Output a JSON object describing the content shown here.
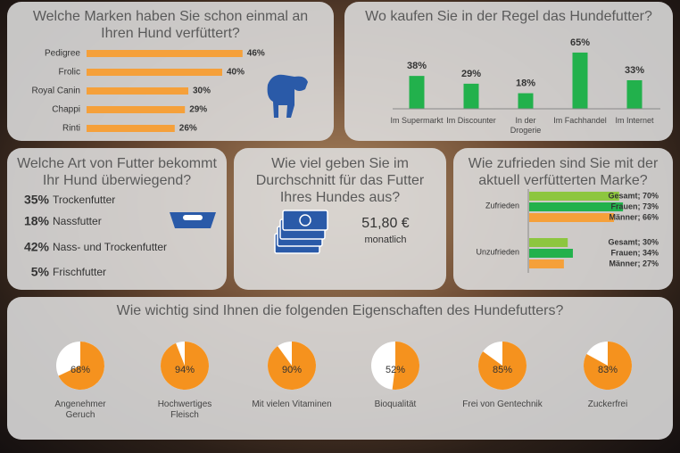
{
  "chart_data": [
    {
      "type": "hbar",
      "title": "Welche Marken haben Sie schon einmal an Ihren Hund verfüttert?",
      "categories": [
        "Pedigree",
        "Frolic",
        "Royal Canin",
        "Chappi",
        "Rinti"
      ],
      "values": [
        46,
        40,
        30,
        29,
        26
      ],
      "value_labels": [
        "46%",
        "40%",
        "30%",
        "29%",
        "26%"
      ],
      "color": "#f5a03a"
    },
    {
      "type": "bar",
      "title": "Wo kaufen Sie in der Regel das Hundefutter?",
      "categories": [
        "Im Supermarkt",
        "Im Discounter",
        "In der Drogerie",
        "Im Fachhandel",
        "Im Internet"
      ],
      "values": [
        38,
        29,
        18,
        65,
        33
      ],
      "value_labels": [
        "38%",
        "29%",
        "18%",
        "65%",
        "33%"
      ],
      "color": "#22b14c"
    },
    {
      "type": "grouped-hbar",
      "title": "Wie zufrieden sind Sie mit der aktuell verfütterten Marke?",
      "categories": [
        "Zufrieden",
        "Unzufrieden"
      ],
      "series": [
        {
          "color": "#8dc63f",
          "values": [
            70,
            30
          ],
          "value_labels": [
            "Gesamt; 70%",
            "Gesamt; 30%"
          ]
        },
        {
          "color": "#22b14c",
          "values": [
            73,
            34
          ],
          "value_labels": [
            "Frauen; 73%",
            "Frauen; 34%"
          ]
        },
        {
          "color": "#f5a03a",
          "values": [
            66,
            27
          ],
          "value_labels": [
            "Männer; 66%",
            "Männer; 27%"
          ]
        }
      ]
    },
    {
      "type": "pie-grid",
      "title": "Wie wichtig sind Ihnen die folgenden Eigenschaften des Hundefutters?",
      "categories": [
        "Angenehmer Geruch",
        "Hochwertiges Fleisch",
        "Mit vielen Vitaminen",
        "Bioqualität",
        "Frei von Gentechnik",
        "Zuckerfrei"
      ],
      "values": [
        68,
        94,
        90,
        52,
        85,
        83
      ],
      "value_labels": [
        "68%",
        "94%",
        "90%",
        "52%",
        "85%",
        "83%"
      ],
      "color": "#f5921e"
    }
  ],
  "food_type": {
    "title": "Welche Art von Futter bekommt Ihr Hund überwiegend?",
    "items": [
      {
        "share": "35%",
        "label": "Trockenfutter"
      },
      {
        "share": "18%",
        "label": "Nassfutter"
      },
      {
        "share": "42%",
        "label": "Nass- und Trockenfutter"
      },
      {
        "share": "5%",
        "label": "Frischfutter"
      }
    ]
  },
  "spending": {
    "title": "Wie viel geben Sie im Durchschnitt für das Futter Ihres Hundes aus?",
    "amount": "51,80 €",
    "period": "monatlich"
  }
}
